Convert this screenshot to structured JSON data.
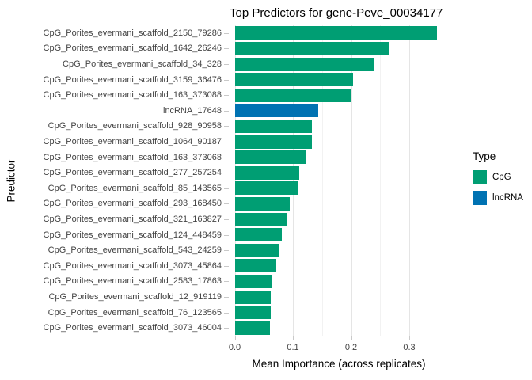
{
  "title": "Top Predictors for gene-Peve_00034177",
  "colors": {
    "cpg": "#009E73",
    "lncrna": "#0072B2",
    "grid_major": "#E5E5E5",
    "grid_minor": "#F2F2F2",
    "tick_mark": "#C9C9C9",
    "axis_text": "#444444",
    "background": "#FFFFFF"
  },
  "chart_data": {
    "type": "bar",
    "orientation": "horizontal",
    "title": "Top Predictors for gene-Peve_00034177",
    "xlabel": "Mean Importance (across replicates)",
    "ylabel": "Predictor",
    "xlim": [
      0,
      0.365
    ],
    "x_ticks": [
      0.0,
      0.1,
      0.2,
      0.3
    ],
    "x_tick_labels": [
      "0.0",
      "0.1",
      "0.2",
      "0.3"
    ],
    "x_minor_ticks": [
      0.05,
      0.15,
      0.25,
      0.35
    ],
    "grid": true,
    "legend": {
      "title": "Type",
      "position": "right",
      "entries": [
        {
          "label": "CpG",
          "color": "#009E73"
        },
        {
          "label": "lncRNA",
          "color": "#0072B2"
        }
      ]
    },
    "bars": [
      {
        "label": "CpG_Porites_evermani_scaffold_2150_79286",
        "value": 0.348,
        "type": "CpG"
      },
      {
        "label": "CpG_Porites_evermani_scaffold_1642_26246",
        "value": 0.264,
        "type": "CpG"
      },
      {
        "label": "CpG_Porites_evermani_scaffold_34_328",
        "value": 0.24,
        "type": "CpG"
      },
      {
        "label": "CpG_Porites_evermani_scaffold_3159_36476",
        "value": 0.203,
        "type": "CpG"
      },
      {
        "label": "CpG_Porites_evermani_scaffold_163_373088",
        "value": 0.199,
        "type": "CpG"
      },
      {
        "label": "lncRNA_17648",
        "value": 0.144,
        "type": "lncRNA"
      },
      {
        "label": "CpG_Porites_evermani_scaffold_928_90958",
        "value": 0.133,
        "type": "CpG"
      },
      {
        "label": "CpG_Porites_evermani_scaffold_1064_90187",
        "value": 0.132,
        "type": "CpG"
      },
      {
        "label": "CpG_Porites_evermani_scaffold_163_373068",
        "value": 0.123,
        "type": "CpG"
      },
      {
        "label": "CpG_Porites_evermani_scaffold_277_257254",
        "value": 0.111,
        "type": "CpG"
      },
      {
        "label": "CpG_Porites_evermani_scaffold_85_143565",
        "value": 0.11,
        "type": "CpG"
      },
      {
        "label": "CpG_Porites_evermani_scaffold_293_168450",
        "value": 0.094,
        "type": "CpG"
      },
      {
        "label": "CpG_Porites_evermani_scaffold_321_163827",
        "value": 0.089,
        "type": "CpG"
      },
      {
        "label": "CpG_Porites_evermani_scaffold_124_448459",
        "value": 0.081,
        "type": "CpG"
      },
      {
        "label": "CpG_Porites_evermani_scaffold_543_24259",
        "value": 0.075,
        "type": "CpG"
      },
      {
        "label": "CpG_Porites_evermani_scaffold_3073_45864",
        "value": 0.071,
        "type": "CpG"
      },
      {
        "label": "CpG_Porites_evermani_scaffold_2583_17863",
        "value": 0.063,
        "type": "CpG"
      },
      {
        "label": "CpG_Porites_evermani_scaffold_12_919119",
        "value": 0.062,
        "type": "CpG"
      },
      {
        "label": "CpG_Porites_evermani_scaffold_76_123565",
        "value": 0.062,
        "type": "CpG"
      },
      {
        "label": "CpG_Porites_evermani_scaffold_3073_46004",
        "value": 0.06,
        "type": "CpG"
      }
    ]
  }
}
